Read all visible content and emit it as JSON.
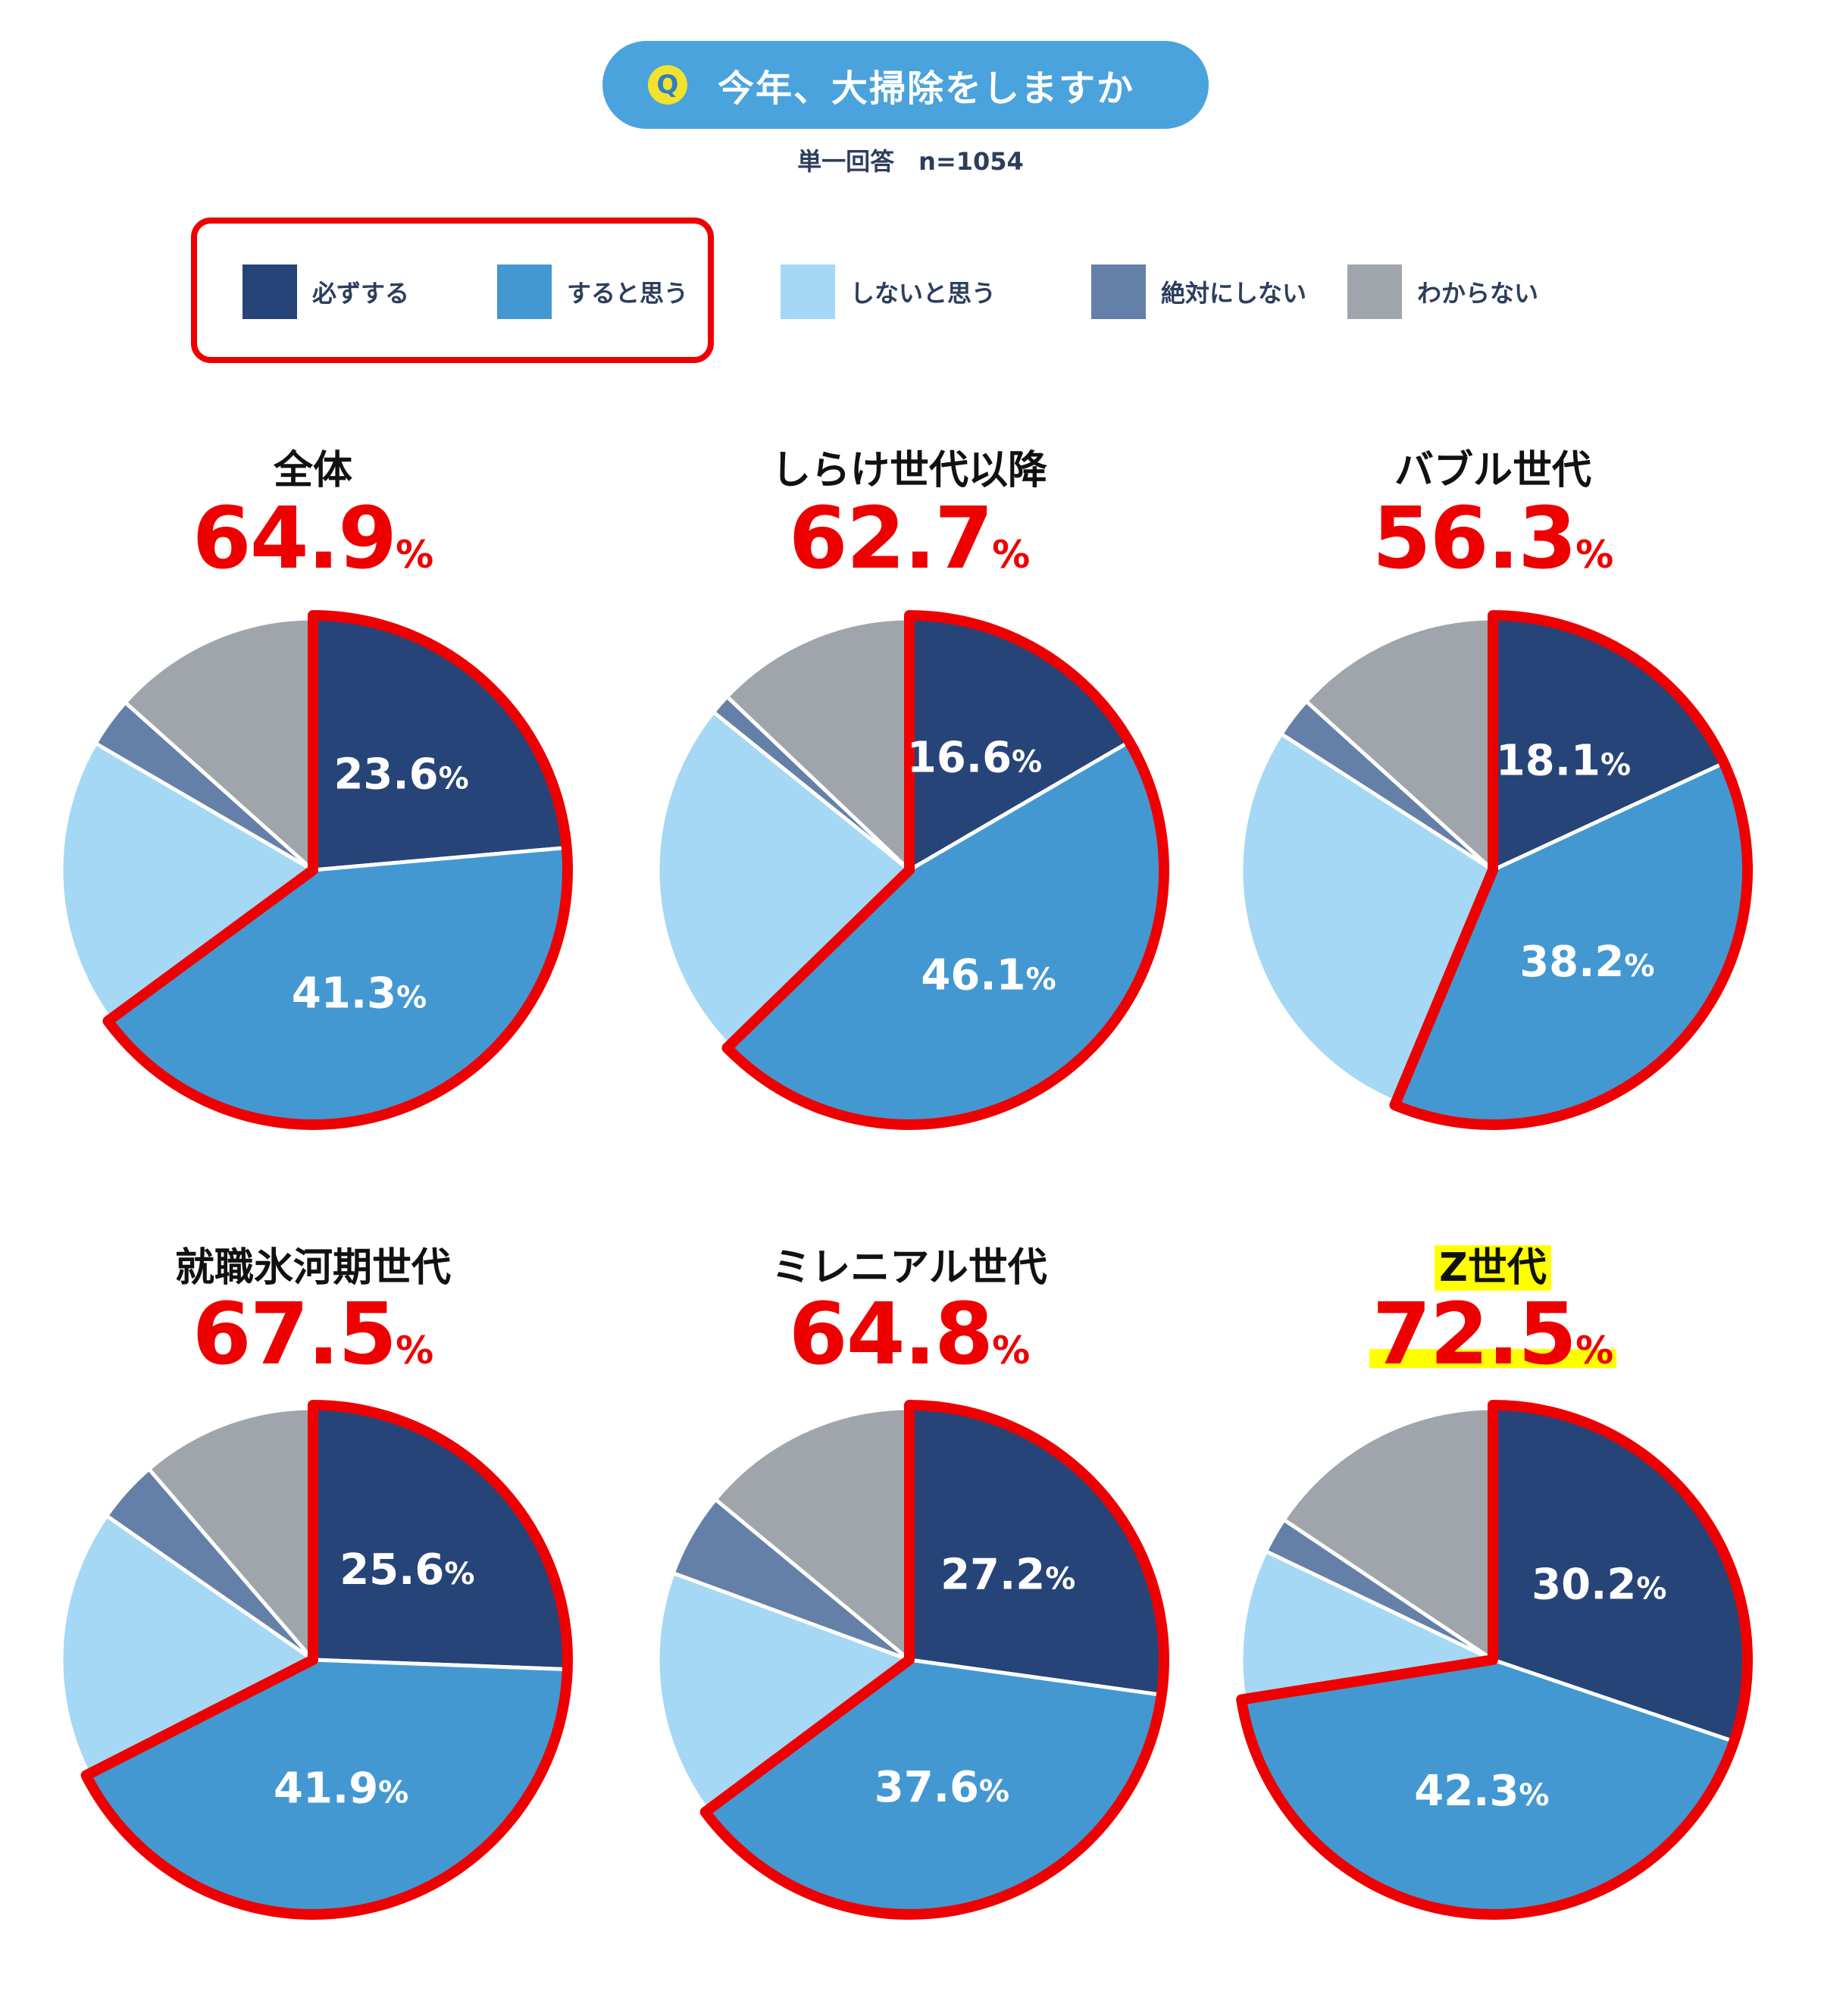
{
  "header": {
    "q_icon": "Q",
    "question": "今年、大掃除をしますか",
    "answer_type": "単一回答　n=1054"
  },
  "legend": [
    {
      "label": "必ずする",
      "color": "#264478"
    },
    {
      "label": "すると思う",
      "color": "#4398d1"
    },
    {
      "label": "しないと思う",
      "color": "#a5d8f4"
    },
    {
      "label": "絶対にしない",
      "color": "#6480a8"
    },
    {
      "label": "わからない",
      "color": "#a0a5ab"
    }
  ],
  "highlight_color": "#ee0000",
  "pct_unit": "%",
  "chart_data": [
    {
      "type": "pie",
      "title": "全体",
      "total": "64.9",
      "highlight": false,
      "slices": [
        {
          "category": "必ずする",
          "value": 23.6,
          "label": "23.6"
        },
        {
          "category": "すると思う",
          "value": 41.3,
          "label": "41.3"
        },
        {
          "category": "しないと思う",
          "value": 18.5
        },
        {
          "category": "絶対にしない",
          "value": 3.2
        },
        {
          "category": "わからない",
          "value": 13.4
        }
      ]
    },
    {
      "type": "pie",
      "title": "しらけ世代以降",
      "total": "62.7",
      "highlight": false,
      "slices": [
        {
          "category": "必ずする",
          "value": 16.6,
          "label": "16.6"
        },
        {
          "category": "すると思う",
          "value": 46.1,
          "label": "46.1"
        },
        {
          "category": "しないと思う",
          "value": 23.1
        },
        {
          "category": "絶対にしない",
          "value": 1.3
        },
        {
          "category": "わからない",
          "value": 12.9
        }
      ]
    },
    {
      "type": "pie",
      "title": "バブル世代",
      "total": "56.3",
      "highlight": false,
      "slices": [
        {
          "category": "必ずする",
          "value": 18.1,
          "label": "18.1"
        },
        {
          "category": "すると思う",
          "value": 38.2,
          "label": "38.2"
        },
        {
          "category": "しないと思う",
          "value": 27.8
        },
        {
          "category": "絶対にしない",
          "value": 2.6
        },
        {
          "category": "わからない",
          "value": 13.3
        }
      ]
    },
    {
      "type": "pie",
      "title": "就職氷河期世代",
      "total": "67.5",
      "highlight": false,
      "slices": [
        {
          "category": "必ずする",
          "value": 25.6,
          "label": "25.6"
        },
        {
          "category": "すると思う",
          "value": 41.9,
          "label": "41.9"
        },
        {
          "category": "しないと思う",
          "value": 17.2
        },
        {
          "category": "絶対にしない",
          "value": 4.0
        },
        {
          "category": "わからない",
          "value": 11.3
        }
      ]
    },
    {
      "type": "pie",
      "title": "ミレニアル世代",
      "total": "64.8",
      "highlight": false,
      "slices": [
        {
          "category": "必ずする",
          "value": 27.2,
          "label": "27.2"
        },
        {
          "category": "すると思う",
          "value": 37.6,
          "label": "37.6"
        },
        {
          "category": "しないと思う",
          "value": 15.8
        },
        {
          "category": "絶対にしない",
          "value": 5.4
        },
        {
          "category": "わからない",
          "value": 14.0
        }
      ]
    },
    {
      "type": "pie",
      "title": "Z世代",
      "total": "72.5",
      "highlight": true,
      "slices": [
        {
          "category": "必ずする",
          "value": 30.2,
          "label": "30.2"
        },
        {
          "category": "すると思う",
          "value": 42.3,
          "label": "42.3"
        },
        {
          "category": "しないと思う",
          "value": 9.6
        },
        {
          "category": "絶対にしない",
          "value": 2.3
        },
        {
          "category": "わからない",
          "value": 15.6
        }
      ]
    }
  ]
}
